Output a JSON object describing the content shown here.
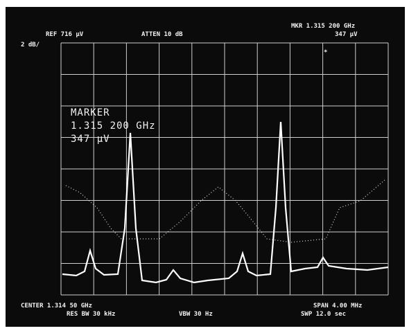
{
  "header": {
    "ref": "REF 716 µV",
    "atten": "ATTEN 10 dB",
    "marker_freq": "MKR 1.315 200 GHz",
    "marker_amp": "347 µV",
    "scale": "2 dB/"
  },
  "marker_box": {
    "title": "MARKER",
    "freq": "1.315 200 GHz",
    "amp": "347 µV"
  },
  "footer": {
    "center": "CENTER 1.314 50 GHz",
    "res_bw": "RES BW 30 kHz",
    "vbw": "VBW 30 Hz",
    "span": "SPAN 4.00 MHz",
    "sweep": "SWP 12.0 sec"
  }
}
